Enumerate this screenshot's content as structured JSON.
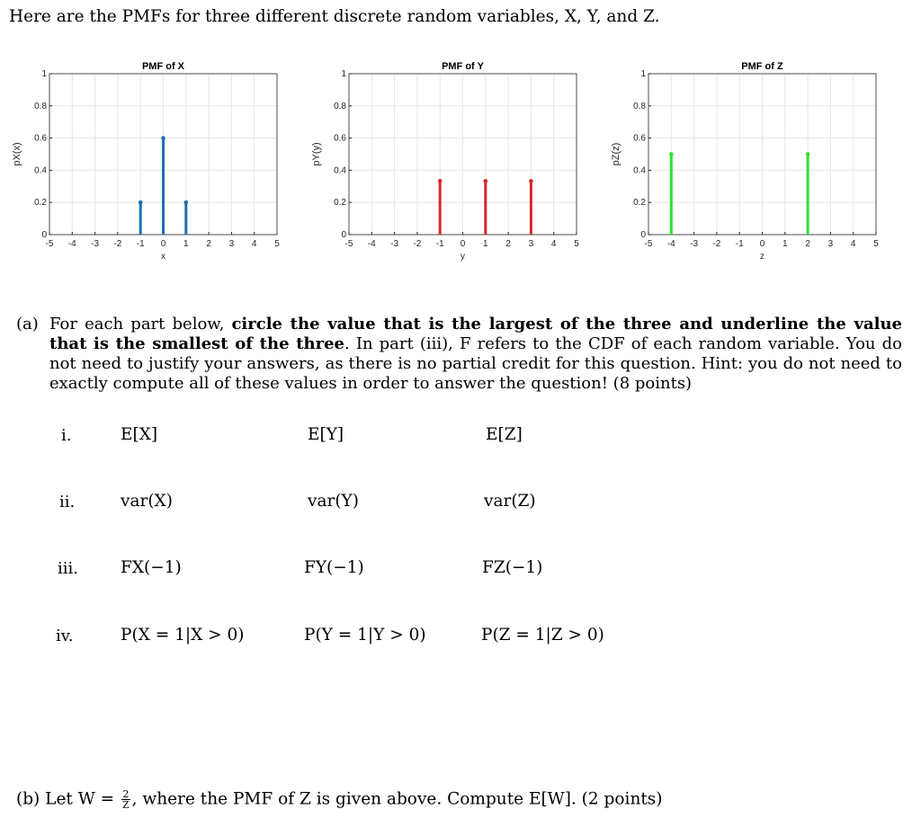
{
  "intro": "Here are the PMFs for three different discrete random variables, X, Y, and Z.",
  "chart_data": [
    {
      "type": "stem",
      "title": "PMF of X",
      "xlabel": "x",
      "ylabel": "pX(x)",
      "xlim": [
        -5,
        5
      ],
      "ylim": [
        0,
        1
      ],
      "x": [
        -1,
        0,
        1
      ],
      "values": [
        0.2,
        0.6,
        0.2
      ],
      "color": "#1f6fb0",
      "xticks": [
        "-5",
        "-4",
        "-3",
        "-2",
        "-1",
        "0",
        "1",
        "2",
        "3",
        "4",
        "5"
      ],
      "yticks": [
        "0",
        "0.2",
        "0.4",
        "0.6",
        "0.8",
        "1"
      ]
    },
    {
      "type": "stem",
      "title": "PMF of Y",
      "xlabel": "y",
      "ylabel": "pY(y)",
      "xlim": [
        -5,
        5
      ],
      "ylim": [
        0,
        1
      ],
      "x": [
        -1,
        1,
        3
      ],
      "values": [
        0.333,
        0.333,
        0.333
      ],
      "color": "#d62728",
      "xticks": [
        "-5",
        "-4",
        "-3",
        "-2",
        "-1",
        "0",
        "1",
        "2",
        "3",
        "4",
        "5"
      ],
      "yticks": [
        "0",
        "0.2",
        "0.4",
        "0.6",
        "0.8",
        "1"
      ]
    },
    {
      "type": "stem",
      "title": "PMF of Z",
      "xlabel": "z",
      "ylabel": "pZ(z)",
      "xlim": [
        -5,
        5
      ],
      "ylim": [
        0,
        1
      ],
      "x": [
        -4,
        2
      ],
      "values": [
        0.5,
        0.5
      ],
      "color": "#2ee02e",
      "xticks": [
        "-5",
        "-4",
        "-3",
        "-2",
        "-1",
        "0",
        "1",
        "2",
        "3",
        "4",
        "5"
      ],
      "yticks": [
        "0",
        "0.2",
        "0.4",
        "0.6",
        "0.8",
        "1"
      ]
    }
  ],
  "part_a": {
    "label": "(a)",
    "text1": "For each part below, ",
    "bold": "circle the value that is the largest of the three and underline the value that is the smallest of the three",
    "text2": ". In part (iii), F refers to the CDF of each random variable. You do not need to justify your answers, as there is no partial credit for this question. Hint: you do not need to exactly compute all of these values in order to answer the question! (8 points)"
  },
  "rows": [
    {
      "num": "i.",
      "cells": [
        "E[X]",
        "E[Y]",
        "E[Z]"
      ]
    },
    {
      "num": "ii.",
      "cells": [
        "var(X)",
        "var(Y)",
        "var(Z)"
      ]
    },
    {
      "num": "iii.",
      "cells": [
        "FX(−1)",
        "FY(−1)",
        "FZ(−1)"
      ]
    },
    {
      "num": "iv.",
      "cells": [
        "P(X = 1|X > 0)",
        "P(Y = 1|Y > 0)",
        "P(Z = 1|Z > 0)"
      ]
    }
  ],
  "part_b": {
    "label": "(b)",
    "prefix": "Let W =",
    "frac_num": "2",
    "frac_den": "Z",
    "suffix": ", where the PMF of Z is given above. Compute E[W]. (2 points)"
  }
}
